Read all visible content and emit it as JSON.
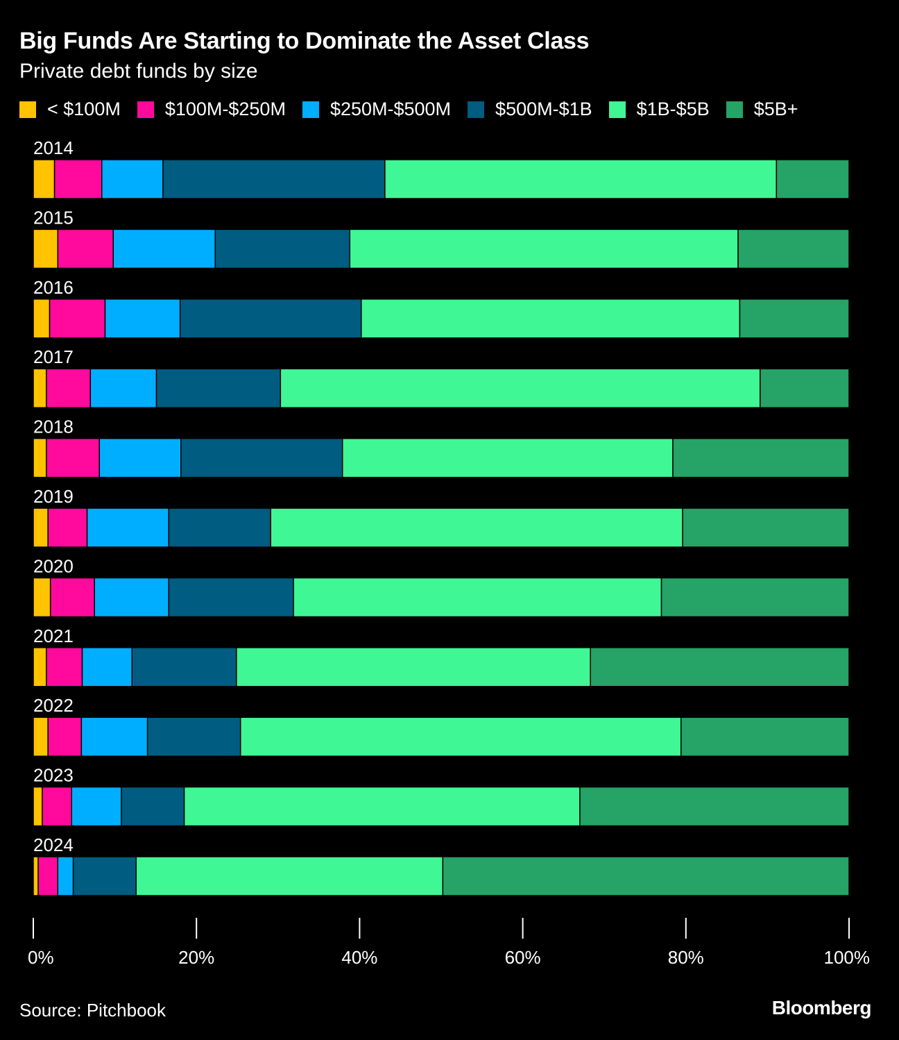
{
  "header": {
    "title": "Big Funds Are Starting to Dominate the Asset Class",
    "subtitle": "Private debt funds by size"
  },
  "footer": {
    "source": "Source: Pitchbook",
    "brand": "Bloomberg"
  },
  "chart_data": {
    "type": "bar",
    "orientation": "horizontal",
    "stacked": true,
    "normalized": true,
    "title": "Big Funds Are Starting to Dominate the Asset Class",
    "subtitle": "Private debt funds by size",
    "xlabel": "",
    "ylabel": "",
    "xlim": [
      0,
      100
    ],
    "x_ticks": [
      "0%",
      "20%",
      "40%",
      "60%",
      "80%",
      "100%"
    ],
    "x_tick_values": [
      0,
      20,
      40,
      60,
      80,
      100
    ],
    "legend_position": "top",
    "grid": false,
    "categories": [
      "2014",
      "2015",
      "2016",
      "2017",
      "2018",
      "2019",
      "2020",
      "2021",
      "2022",
      "2023",
      "2024"
    ],
    "series": [
      {
        "name": "< $100M",
        "color": "#FFC300",
        "values": [
          2.6,
          3.0,
          2.0,
          1.6,
          1.6,
          1.8,
          2.1,
          1.6,
          1.8,
          1.1,
          0.6
        ]
      },
      {
        "name": "$100M-$250M",
        "color": "#FF0A9C",
        "values": [
          5.8,
          6.8,
          6.8,
          5.4,
          6.5,
          4.8,
          5.4,
          4.4,
          4.1,
          3.6,
          2.4
        ]
      },
      {
        "name": "$250M-$500M",
        "color": "#00AEFF",
        "values": [
          7.5,
          12.5,
          9.2,
          8.1,
          10.0,
          10.0,
          9.1,
          6.1,
          8.1,
          6.1,
          1.9
        ]
      },
      {
        "name": "$500M-$1B",
        "color": "#005C80",
        "values": [
          27.2,
          16.5,
          22.2,
          15.2,
          19.8,
          12.5,
          15.3,
          12.8,
          11.4,
          7.7,
          7.7
        ]
      },
      {
        "name": "$1B-$5B",
        "color": "#3FF794",
        "values": [
          48.0,
          47.6,
          46.4,
          58.8,
          40.5,
          50.5,
          45.1,
          43.4,
          54.0,
          48.5,
          37.6
        ]
      },
      {
        "name": "$5B+",
        "color": "#26A366",
        "values": [
          8.9,
          13.6,
          13.4,
          10.9,
          21.6,
          20.4,
          23.0,
          31.7,
          20.6,
          33.0,
          49.8
        ]
      }
    ]
  }
}
